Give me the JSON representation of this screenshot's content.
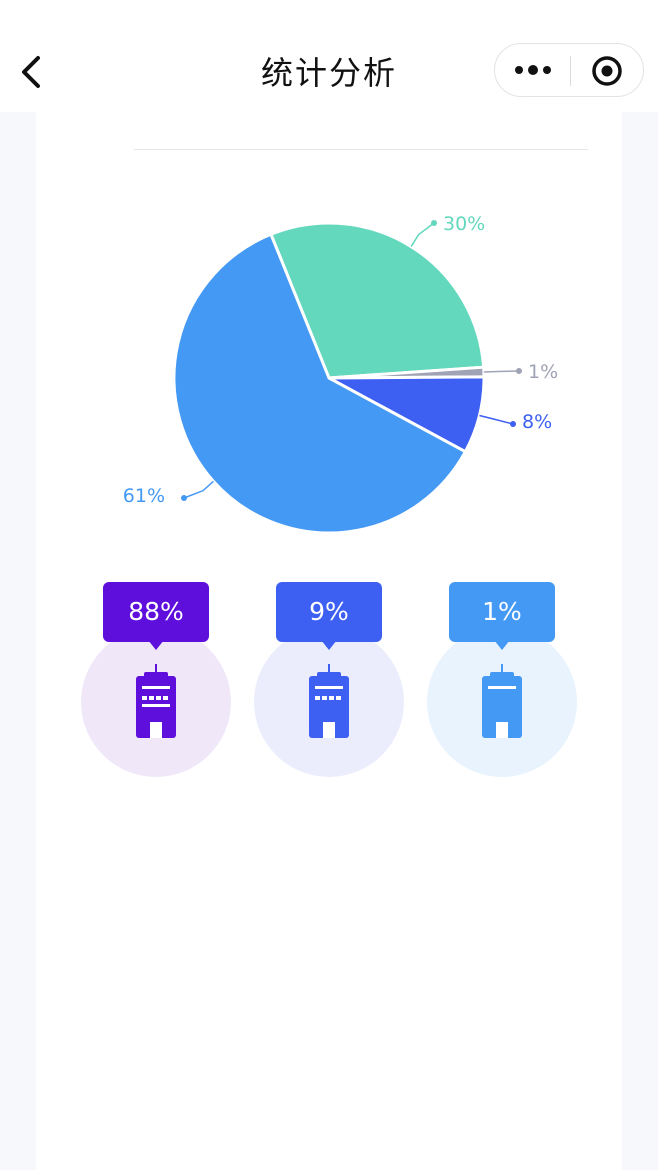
{
  "header": {
    "title": "统计分析"
  },
  "chart_data": {
    "type": "pie",
    "slices": [
      {
        "label": "30%",
        "value": 30,
        "color": "#63d8bd"
      },
      {
        "label": "1%",
        "value": 1,
        "color": "#a0a3b5"
      },
      {
        "label": "8%",
        "value": 8,
        "color": "#3d5ff2"
      },
      {
        "label": "61%",
        "value": 61,
        "color": "#4499f4"
      }
    ]
  },
  "stats": [
    {
      "label": "88%",
      "color": "#5f0fdc",
      "bg": "#f0e7f9",
      "icon": "building-icon"
    },
    {
      "label": "9%",
      "color": "#3d5ff2",
      "bg": "#ebedfd",
      "icon": "building-icon"
    },
    {
      "label": "1%",
      "color": "#4499f4",
      "bg": "#e8f3fd",
      "icon": "building-icon"
    }
  ]
}
